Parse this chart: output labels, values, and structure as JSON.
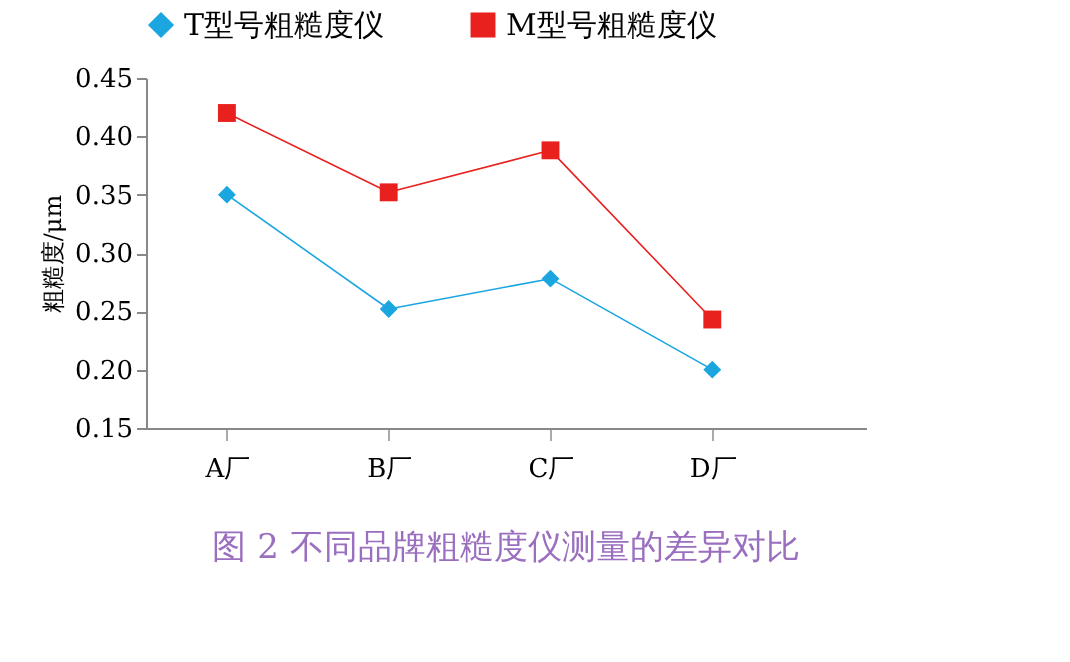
{
  "chart_data": {
    "type": "line",
    "ylabel": "粗糙度/μm",
    "categories": [
      "A厂",
      "B厂",
      "C厂",
      "D厂"
    ],
    "series": [
      {
        "name": "T型号粗糙度仪",
        "color": "#1ba6e0",
        "marker": "diamond",
        "values": [
          0.35,
          0.252,
          0.278,
          0.2
        ]
      },
      {
        "name": "M型号粗糙度仪",
        "color": "#e8201e",
        "marker": "square",
        "values": [
          0.42,
          0.352,
          0.388,
          0.243
        ]
      }
    ],
    "ylim": [
      0.15,
      0.45
    ],
    "yticks": [
      0.15,
      {
        "value": 0.2,
        "label": "0.20"
      },
      0.25,
      {
        "value": 0.3,
        "label": "0.30"
      },
      0.35,
      {
        "value": 0.4,
        "label": "0.40"
      },
      0.45
    ],
    "grid": false,
    "legend": "top",
    "line_style": "solid",
    "annotations": [
      "图 2    不同品牌粗糙度仪测量的差异对比"
    ]
  }
}
